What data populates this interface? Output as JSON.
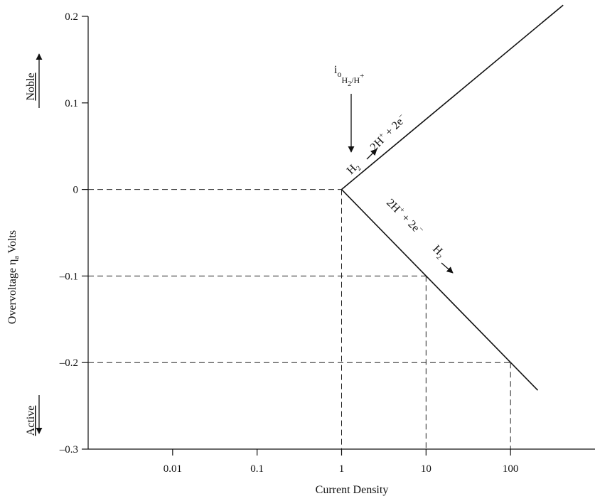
{
  "chart_data": {
    "type": "line",
    "xlabel": "Current Density",
    "ylabel": "Overvoltage η",
    "ylabel_sub": "a",
    "ylabel_tail": " Volts",
    "x_scale": "log",
    "xlim": [
      0.001,
      1000
    ],
    "ylim": [
      -0.3,
      0.2
    ],
    "x_ticks": [
      {
        "value": 0.01,
        "label": "0.01"
      },
      {
        "value": 0.1,
        "label": "0.1"
      },
      {
        "value": 1,
        "label": "1"
      },
      {
        "value": 10,
        "label": "10"
      },
      {
        "value": 100,
        "label": "100"
      }
    ],
    "y_ticks": [
      {
        "value": 0.2,
        "label": "0.2"
      },
      {
        "value": 0.1,
        "label": "0.1"
      },
      {
        "value": 0,
        "label": "0"
      },
      {
        "value": -0.1,
        "label": "–0.1"
      },
      {
        "value": -0.2,
        "label": "–0.2"
      },
      {
        "value": -0.3,
        "label": "–0.3"
      }
    ],
    "series": [
      {
        "points": [
          [
            1,
            0
          ],
          [
            420,
            0.213
          ]
        ]
      },
      {
        "points": [
          [
            1,
            0
          ],
          [
            210,
            -0.232
          ]
        ]
      }
    ],
    "guides": [
      {
        "x": 1,
        "y": 0
      },
      {
        "x": 10,
        "y": -0.1
      },
      {
        "x": 100,
        "y": -0.2
      }
    ],
    "grid": false,
    "direction_labels": {
      "noble": "Noble",
      "active": "Active"
    },
    "annotations": {
      "exchange_current": {
        "main": "i",
        "sub": "o",
        "sub2": "H",
        "sub3": "2",
        "sub_rest": "/H",
        "sup": "+"
      },
      "anodic_reaction": {
        "h": "H",
        "h_sub": "2",
        "mid": " 2H",
        "mid_sup": "+",
        "tail": " + 2e",
        "tail_sup": "−"
      },
      "cathodic_reaction": {
        "head": "2H",
        "head_sup": "+",
        "mid": " + 2e",
        "mid_sup": "−",
        "h": "H",
        "h_sub": "2"
      }
    }
  }
}
